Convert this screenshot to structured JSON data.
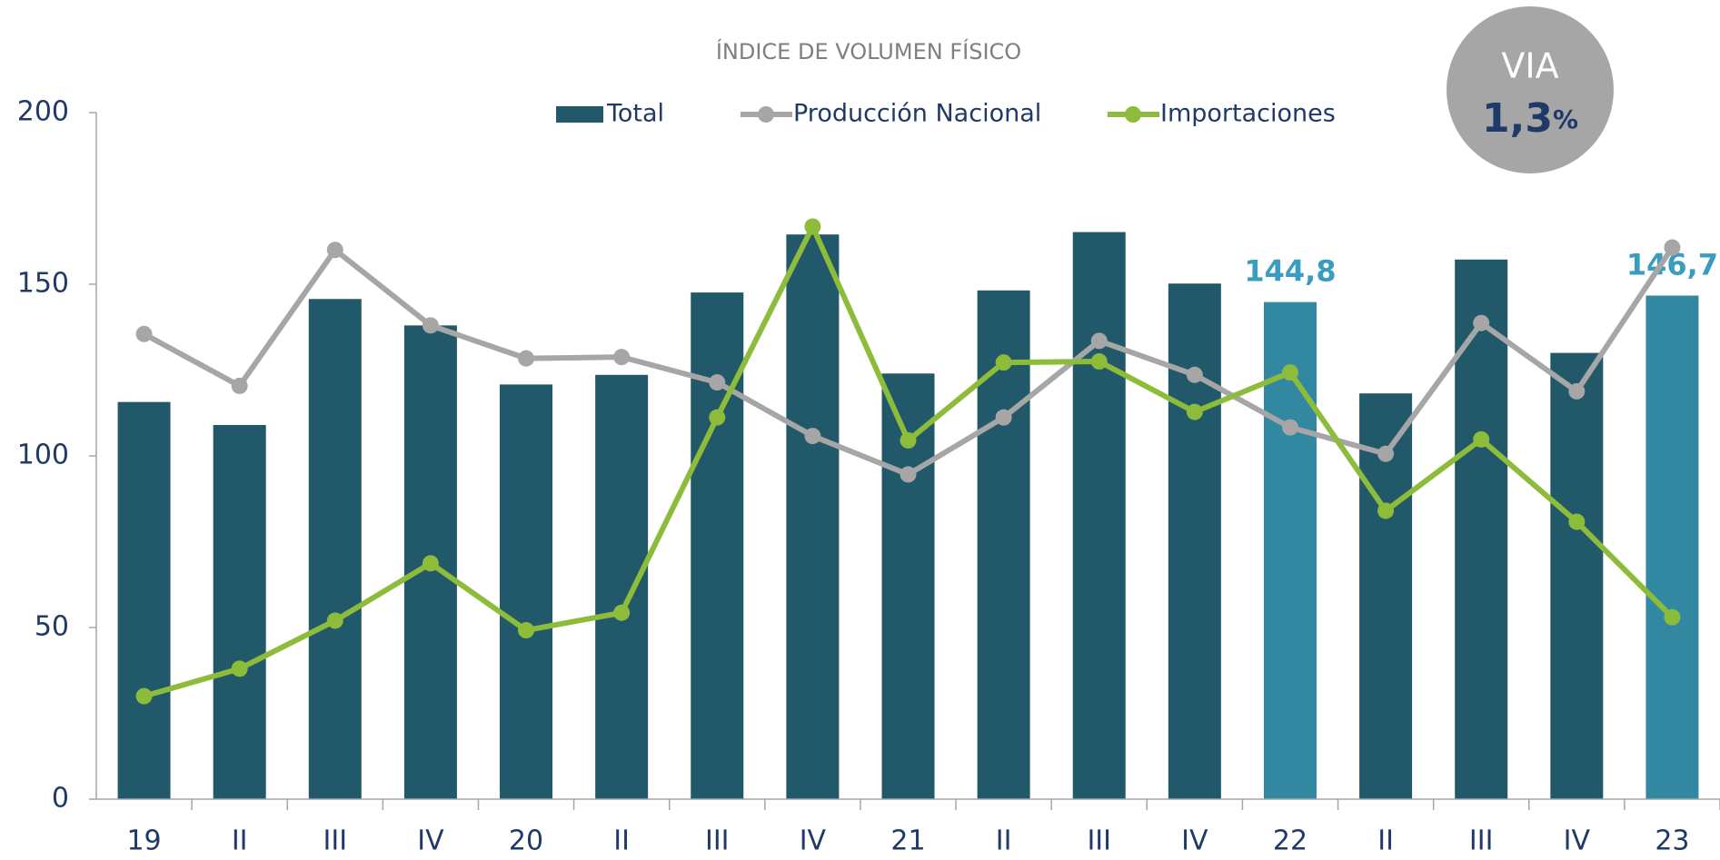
{
  "chart_data": {
    "type": "bar",
    "title": "ÍNDICE DE VOLUMEN FÍSICO",
    "categories": [
      "19",
      "II",
      "III",
      "IV",
      "20",
      "II",
      "III",
      "IV",
      "21",
      "II",
      "III",
      "IV",
      "22",
      "II",
      "III",
      "IV",
      "23"
    ],
    "series": [
      {
        "name": "Total",
        "type": "bar",
        "color": "#22596a",
        "bar_colors": [
          "#22596a",
          "#22596a",
          "#22596a",
          "#22596a",
          "#22596a",
          "#22596a",
          "#22596a",
          "#22596a",
          "#22596a",
          "#22596a",
          "#22596a",
          "#22596a",
          "#3188a0",
          "#22596a",
          "#22596a",
          "#22596a",
          "#3188a0"
        ],
        "values": [
          115.7,
          109,
          145.7,
          138,
          120.8,
          123.6,
          147.6,
          164.5,
          124,
          148.2,
          165.2,
          150.2,
          144.8,
          118.2,
          157.2,
          130,
          146.7
        ],
        "value_labels": [
          null,
          null,
          null,
          null,
          null,
          null,
          null,
          null,
          null,
          null,
          null,
          null,
          "144,8",
          null,
          null,
          null,
          "146,7"
        ]
      },
      {
        "name": "Producción Nacional",
        "type": "line",
        "color": "#a6a6a6",
        "values": [
          135.5,
          120.4,
          160,
          138,
          128.4,
          128.8,
          121.4,
          105.8,
          94.6,
          111.2,
          133.5,
          123.6,
          108.3,
          100.6,
          138.7,
          118.8,
          160.7
        ]
      },
      {
        "name": "Importaciones",
        "type": "line",
        "color": "#8dbb3a",
        "values": [
          30,
          38,
          52,
          68.7,
          49.2,
          54.3,
          111.2,
          166.8,
          104.5,
          127.2,
          127.5,
          112.8,
          124.3,
          84,
          104.8,
          80.8,
          53
        ]
      }
    ],
    "ylim": [
      0,
      200
    ],
    "yticks": [
      0,
      50,
      100,
      150,
      200
    ],
    "legend": "top",
    "badge": {
      "label": "VIA",
      "value": "1,3",
      "unit": "%"
    }
  }
}
